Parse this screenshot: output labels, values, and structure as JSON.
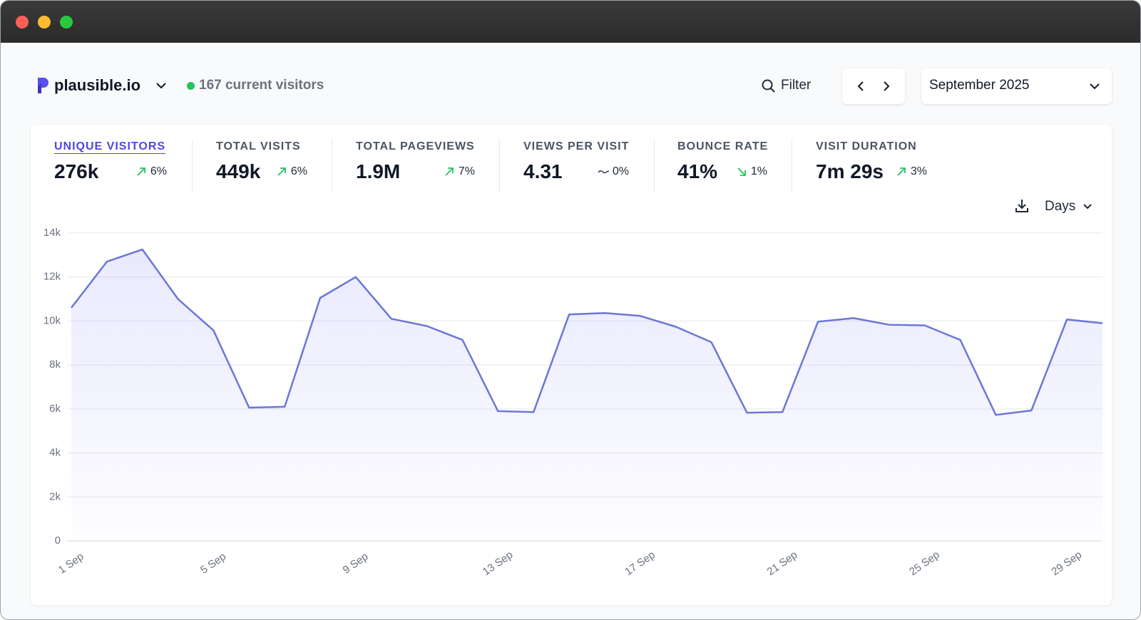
{
  "header": {
    "site": "plausible.io",
    "current_visitors": "167 current visitors",
    "filter": "Filter",
    "period": "September 2025"
  },
  "metrics": [
    {
      "label": "UNIQUE VISITORS",
      "value": "276k",
      "change": "6%",
      "trend": "up",
      "color": "#22c55e"
    },
    {
      "label": "TOTAL VISITS",
      "value": "449k",
      "change": "6%",
      "trend": "up",
      "color": "#22c55e"
    },
    {
      "label": "TOTAL PAGEVIEWS",
      "value": "1.9M",
      "change": "7%",
      "trend": "up",
      "color": "#22c55e"
    },
    {
      "label": "VIEWS PER VISIT",
      "value": "4.31",
      "change": "0%",
      "trend": "flat",
      "color": "#4b5563"
    },
    {
      "label": "BOUNCE RATE",
      "value": "41%",
      "change": "1%",
      "trend": "down",
      "color": "#22c55e"
    },
    {
      "label": "VISIT DURATION",
      "value": "7m 29s",
      "change": "3%",
      "trend": "up",
      "color": "#22c55e"
    }
  ],
  "interval": "Days",
  "chart_data": {
    "type": "line",
    "x": [
      "1 Sep",
      null,
      null,
      null,
      "5 Sep",
      null,
      null,
      null,
      "9 Sep",
      null,
      null,
      null,
      "13 Sep",
      null,
      null,
      null,
      "17 Sep",
      null,
      null,
      null,
      "21 Sep",
      null,
      null,
      null,
      "25 Sep",
      null,
      null,
      null,
      "29 Sep",
      null
    ],
    "values": [
      10600,
      12700,
      13250,
      11000,
      9570,
      6060,
      6100,
      11050,
      12000,
      10100,
      9770,
      9140,
      5900,
      5860,
      10300,
      10360,
      10230,
      9740,
      9040,
      5830,
      5860,
      9970,
      10130,
      9830,
      9800,
      9140,
      5730,
      5930,
      10070,
      9900
    ],
    "color": "#6b77d6",
    "ylim": [
      0,
      14000
    ],
    "yticks": [
      0,
      {
        "value": 2000,
        "label": "2k"
      },
      {
        "value": 4000,
        "label": "4k"
      },
      {
        "value": 6000,
        "label": "6k"
      },
      {
        "value": 8000,
        "label": "8k"
      },
      {
        "value": 10000,
        "label": "10k"
      },
      {
        "value": 12000,
        "label": "12k"
      },
      {
        "value": 14000,
        "label": "14k"
      }
    ],
    "grid": true
  }
}
